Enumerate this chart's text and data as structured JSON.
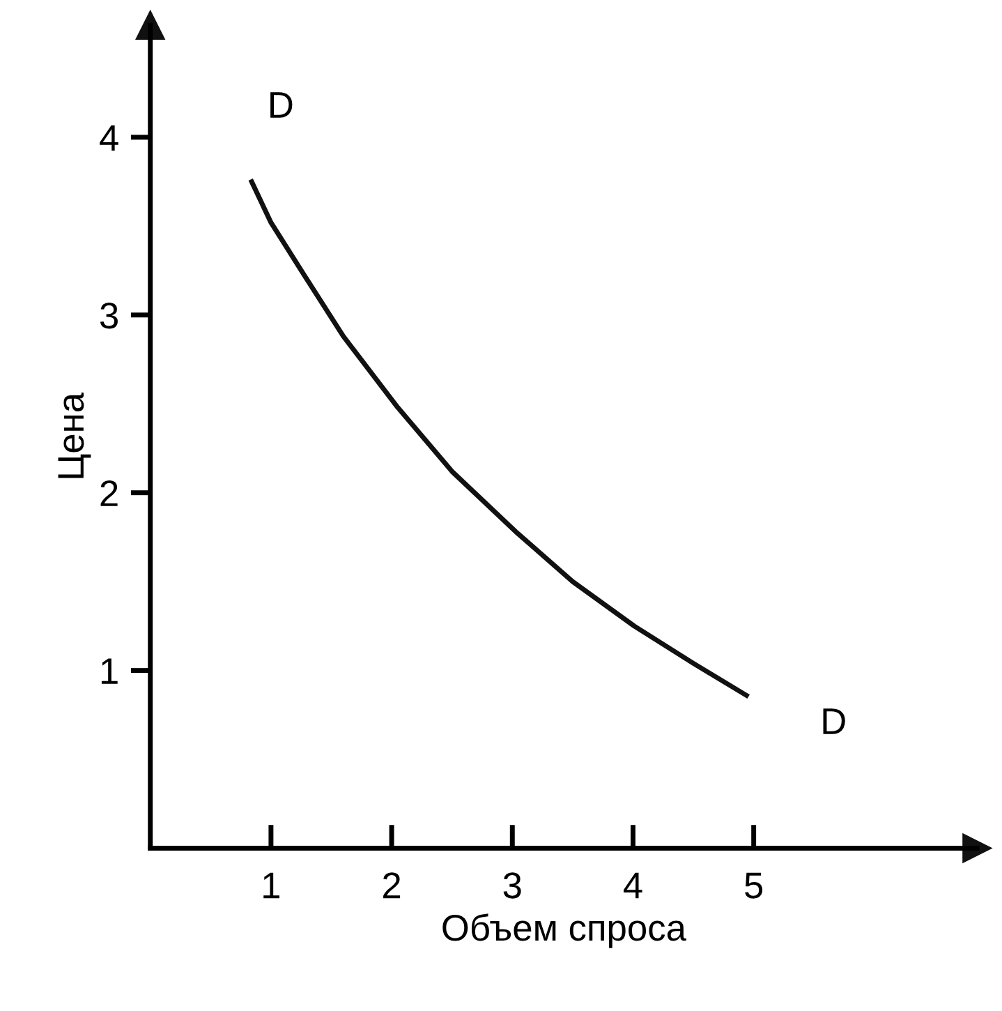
{
  "chart_data": {
    "type": "line",
    "xlabel": "Объем спроса",
    "ylabel": "Цена",
    "xlim": [
      0,
      6.85
    ],
    "ylim": [
      0,
      4.63
    ],
    "xticks": [
      1,
      2,
      3,
      4,
      5
    ],
    "yticks": [
      1,
      2,
      3,
      4
    ],
    "grid": false,
    "legend": false,
    "marker": "none",
    "line_style": "solid",
    "series": [
      {
        "color": "#111111",
        "x": [
          0.84,
          1.0,
          1.27,
          1.6,
          2.05,
          2.5,
          3.03,
          3.5,
          4.01,
          4.5,
          4.94
        ],
        "values": [
          3.75,
          3.52,
          3.23,
          2.88,
          2.48,
          2.12,
          1.78,
          1.5,
          1.25,
          1.04,
          0.86
        ]
      }
    ],
    "annotations": [
      "D",
      "D"
    ]
  }
}
